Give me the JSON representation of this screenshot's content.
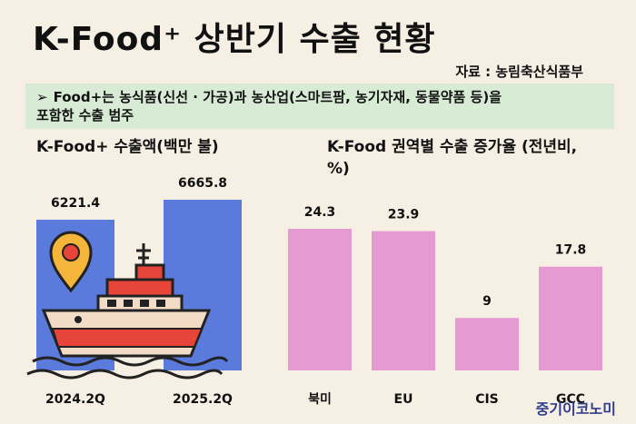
{
  "header": {
    "title": "K-Food⁺ 상반기 수출 현황",
    "source": "자료 : 농림축산식품부"
  },
  "note": {
    "bullet": "➢",
    "line1": "Food+는 농식품(신선 · 가공)과 농산업(스마트팜, 농기자재, 동물약품 등)을",
    "line2": "포함한 수출 범주"
  },
  "footer": {
    "logo": "중기이코노미"
  },
  "colors": {
    "left_bar": "#5b7bdc",
    "right_bar": "#e69ad2",
    "background": "#f6f0e4",
    "note_bg": "#d8ecd5"
  },
  "chart_data": [
    {
      "type": "bar",
      "title": "K-Food+ 수출액(백만 불)",
      "categories": [
        "2024.2Q",
        "2025.2Q"
      ],
      "values": [
        6221.4,
        6665.8
      ],
      "value_labels": [
        "6221.4",
        "6665.8"
      ]
    },
    {
      "type": "bar",
      "title": "K-Food 권역별 수출 증가율 (전년비, %)",
      "categories": [
        "북미",
        "EU",
        "CIS",
        "GCC"
      ],
      "values": [
        24.3,
        23.9,
        9,
        17.8
      ],
      "value_labels": [
        "24.3",
        "23.9",
        "9",
        "17.8"
      ]
    }
  ]
}
